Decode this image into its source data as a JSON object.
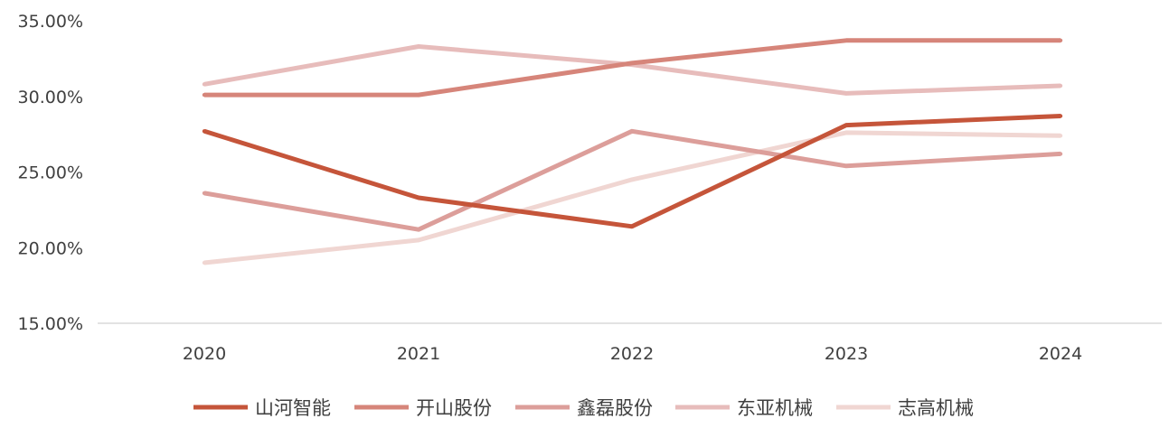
{
  "chart_data": {
    "type": "line",
    "title": "",
    "xlabel": "",
    "ylabel": "",
    "categories": [
      "2020",
      "2021",
      "2022",
      "2023",
      "2024"
    ],
    "ylim": [
      0.15,
      0.35
    ],
    "y_ticks": [
      0.15,
      0.2,
      0.25,
      0.3,
      0.35
    ],
    "y_tick_labels": [
      "15.00%",
      "20.00%",
      "25.00%",
      "30.00%",
      "35.00%"
    ],
    "grid": false,
    "legend_position": "bottom",
    "series": [
      {
        "name": "山河智能",
        "color": "#c5553a",
        "values": [
          0.277,
          0.233,
          0.214,
          0.281,
          0.287
        ]
      },
      {
        "name": "开山股份",
        "color": "#d6857a",
        "values": [
          0.301,
          0.301,
          0.322,
          0.337,
          0.337
        ]
      },
      {
        "name": "鑫磊股份",
        "color": "#dc9e9a",
        "values": [
          0.236,
          0.212,
          0.277,
          0.254,
          0.262
        ]
      },
      {
        "name": "东亚机械",
        "color": "#e7bcbb",
        "values": [
          0.308,
          0.333,
          0.321,
          0.302,
          0.307
        ]
      },
      {
        "name": "志高机械",
        "color": "#f0d6d2",
        "values": [
          0.19,
          0.205,
          0.245,
          0.276,
          0.274
        ]
      }
    ]
  }
}
